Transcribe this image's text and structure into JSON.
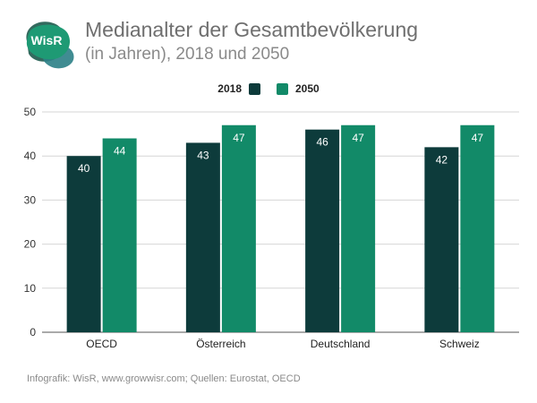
{
  "header": {
    "logo_text": "WisR",
    "title": "Medianalter der Gesamtbevölkerung",
    "subtitle": "(in Jahren), 2018 und 2050"
  },
  "colors": {
    "series_2018": "#0d3b3b",
    "series_2050": "#128a68",
    "grid": "#d6d6d6",
    "logo_green": "#1e9a74",
    "logo_dark": "#1d5a4d",
    "logo_teal": "#2b7f86"
  },
  "chart_data": {
    "type": "bar",
    "title": "Medianalter der Gesamtbevölkerung",
    "subtitle": "(in Jahren), 2018 und 2050",
    "categories": [
      "OECD",
      "Österreich",
      "Deutschland",
      "Schweiz"
    ],
    "series": [
      {
        "name": "2018",
        "values": [
          40,
          43,
          46,
          42
        ]
      },
      {
        "name": "2050",
        "values": [
          44,
          47,
          47,
          47
        ]
      }
    ],
    "ylim": [
      0,
      50
    ],
    "yticks": [
      0,
      10,
      20,
      30,
      40,
      50
    ],
    "grid": true,
    "legend_position": "top-center",
    "xlabel": "",
    "ylabel": ""
  },
  "footer": {
    "source": "Infografik: WisR, www.growwisr.com; Quellen: Eurostat, OECD"
  }
}
